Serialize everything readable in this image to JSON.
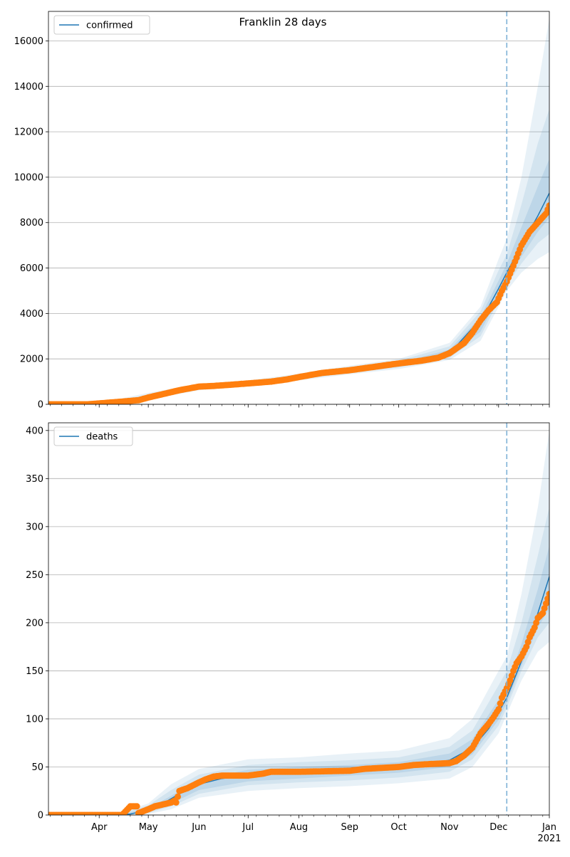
{
  "figure": {
    "title": "Franklin 28 days"
  },
  "chart_data": [
    {
      "type": "line",
      "title": "Franklin 28 days",
      "xlabel": "",
      "ylabel": "",
      "x_axis": "date",
      "xlim": [
        "2020-03-01",
        "2021-01-01"
      ],
      "ylim": [
        0,
        17300
      ],
      "yticks": [
        0,
        2000,
        4000,
        6000,
        8000,
        10000,
        12000,
        14000,
        16000
      ],
      "grid": "horizontal",
      "legend": {
        "placement": "top-left",
        "entries": [
          "confirmed"
        ]
      },
      "vline": {
        "date": "2020-12-06",
        "style": "dashed"
      },
      "colors": {
        "model": "#1f77b4",
        "observed": "#ff7f0e",
        "band": "#1f77b4",
        "vline": "#7fb1d6"
      },
      "series": [
        {
          "name": "confirmed",
          "kind": "model",
          "x": [
            "2020-03-01",
            "2020-03-20",
            "2020-04-01",
            "2020-04-15",
            "2020-04-25",
            "2020-05-05",
            "2020-05-15",
            "2020-05-25",
            "2020-06-05",
            "2020-06-20",
            "2020-07-05",
            "2020-07-20",
            "2020-08-01",
            "2020-08-15",
            "2020-09-01",
            "2020-09-15",
            "2020-10-01",
            "2020-10-15",
            "2020-10-25",
            "2020-11-05",
            "2020-11-15",
            "2020-11-25",
            "2020-12-01",
            "2020-12-06",
            "2020-12-15",
            "2020-12-25",
            "2021-01-01"
          ],
          "values": [
            0,
            0,
            30,
            90,
            200,
            400,
            600,
            750,
            800,
            850,
            920,
            1030,
            1210,
            1380,
            1520,
            1650,
            1800,
            1950,
            2100,
            2550,
            3350,
            4300,
            5100,
            5800,
            7000,
            8300,
            9300
          ]
        },
        {
          "kind": "observed",
          "x": [
            "2020-03-01",
            "2020-03-25",
            "2020-04-01",
            "2020-04-15",
            "2020-04-25",
            "2020-05-01",
            "2020-05-10",
            "2020-05-20",
            "2020-06-01",
            "2020-06-10",
            "2020-06-20",
            "2020-07-01",
            "2020-07-15",
            "2020-07-25",
            "2020-08-01",
            "2020-08-15",
            "2020-09-01",
            "2020-09-15",
            "2020-10-01",
            "2020-10-15",
            "2020-10-25",
            "2020-11-01",
            "2020-11-10",
            "2020-11-15",
            "2020-11-20",
            "2020-11-25",
            "2020-11-30",
            "2020-12-03",
            "2020-12-06",
            "2020-12-10",
            "2020-12-15",
            "2020-12-20",
            "2020-12-25",
            "2020-12-30",
            "2021-01-01"
          ],
          "values": [
            0,
            0,
            40,
            120,
            180,
            300,
            450,
            620,
            780,
            810,
            860,
            920,
            1000,
            1100,
            1200,
            1380,
            1500,
            1640,
            1800,
            1920,
            2050,
            2250,
            2700,
            3150,
            3700,
            4150,
            4500,
            5000,
            5400,
            6100,
            7000,
            7600,
            8000,
            8400,
            8750
          ]
        }
      ],
      "bands": [
        {
          "level": "outer",
          "x": [
            "2020-03-01",
            "2020-04-01",
            "2020-05-01",
            "2020-06-01",
            "2020-07-01",
            "2020-08-01",
            "2020-09-01",
            "2020-10-01",
            "2020-11-01",
            "2020-11-20",
            "2020-12-01",
            "2020-12-06",
            "2020-12-15",
            "2020-12-25",
            "2021-01-01"
          ],
          "lower": [
            0,
            10,
            200,
            620,
            800,
            1050,
            1320,
            1550,
            1950,
            2800,
            4300,
            5000,
            5800,
            6400,
            6700
          ],
          "upper": [
            10,
            60,
            500,
            900,
            1050,
            1350,
            1700,
            2000,
            2700,
            4300,
            6400,
            7300,
            10000,
            14000,
            17000
          ]
        },
        {
          "level": "middle",
          "x": [
            "2020-03-01",
            "2020-04-01",
            "2020-05-01",
            "2020-06-01",
            "2020-07-01",
            "2020-08-01",
            "2020-09-01",
            "2020-10-01",
            "2020-11-01",
            "2020-11-20",
            "2020-12-01",
            "2020-12-06",
            "2020-12-15",
            "2020-12-25",
            "2021-01-01"
          ],
          "lower": [
            0,
            15,
            240,
            680,
            830,
            1100,
            1380,
            1620,
            2050,
            3000,
            4550,
            5250,
            6200,
            7100,
            7500
          ],
          "upper": [
            5,
            45,
            420,
            840,
            1000,
            1300,
            1640,
            1920,
            2550,
            4100,
            5900,
            6600,
            8800,
            11500,
            13000
          ]
        },
        {
          "level": "inner",
          "x": [
            "2020-03-01",
            "2020-04-01",
            "2020-05-01",
            "2020-06-01",
            "2020-07-01",
            "2020-08-01",
            "2020-09-01",
            "2020-10-01",
            "2020-11-01",
            "2020-11-20",
            "2020-12-01",
            "2020-12-06",
            "2020-12-15",
            "2020-12-25",
            "2021-01-01"
          ],
          "lower": [
            0,
            20,
            280,
            730,
            870,
            1150,
            1440,
            1690,
            2150,
            3200,
            4750,
            5450,
            6500,
            7600,
            8200
          ],
          "upper": [
            2,
            35,
            370,
            790,
            960,
            1250,
            1580,
            1840,
            2400,
            3850,
            5450,
            6200,
            7800,
            9600,
            10800
          ]
        }
      ]
    },
    {
      "type": "line",
      "title": "",
      "xlabel": "",
      "ylabel": "",
      "x_axis": "date",
      "xlim": [
        "2020-03-01",
        "2021-01-01"
      ],
      "ylim": [
        0,
        408
      ],
      "yticks": [
        0,
        50,
        100,
        150,
        200,
        250,
        300,
        350,
        400
      ],
      "xticks": [
        {
          "date": "2020-04-01",
          "label": "Apr"
        },
        {
          "date": "2020-05-01",
          "label": "May"
        },
        {
          "date": "2020-06-01",
          "label": "Jun"
        },
        {
          "date": "2020-07-01",
          "label": "Jul"
        },
        {
          "date": "2020-08-01",
          "label": "Aug"
        },
        {
          "date": "2020-09-01",
          "label": "Sep"
        },
        {
          "date": "2020-10-01",
          "label": "Oct"
        },
        {
          "date": "2020-11-01",
          "label": "Nov"
        },
        {
          "date": "2020-12-01",
          "label": "Dec"
        },
        {
          "date": "2021-01-01",
          "label": "Jan",
          "sublabel": "2021"
        }
      ],
      "grid": "horizontal",
      "legend": {
        "placement": "top-left",
        "entries": [
          "deaths"
        ]
      },
      "vline": {
        "date": "2020-12-06",
        "style": "dashed"
      },
      "colors": {
        "model": "#1f77b4",
        "observed": "#ff7f0e",
        "band": "#1f77b4",
        "vline": "#7fb1d6"
      },
      "series": [
        {
          "name": "deaths",
          "kind": "model",
          "x": [
            "2020-03-01",
            "2020-04-01",
            "2020-04-20",
            "2020-05-01",
            "2020-05-10",
            "2020-05-20",
            "2020-06-01",
            "2020-06-15",
            "2020-07-01",
            "2020-07-20",
            "2020-08-01",
            "2020-08-15",
            "2020-09-01",
            "2020-09-15",
            "2020-10-01",
            "2020-10-15",
            "2020-11-01",
            "2020-11-15",
            "2020-11-25",
            "2020-12-01",
            "2020-12-06",
            "2020-12-15",
            "2020-12-25",
            "2021-01-01"
          ],
          "values": [
            0,
            0,
            1,
            5,
            12,
            22,
            32,
            38,
            41,
            43,
            44,
            45,
            46,
            47,
            49,
            52,
            57,
            70,
            90,
            107,
            122,
            160,
            210,
            248
          ]
        },
        {
          "kind": "observed",
          "x": [
            "2020-03-01",
            "2020-04-15",
            "2020-04-20",
            "2020-04-21",
            "2020-04-22",
            "2020-04-24",
            "2020-04-25",
            "2020-04-28",
            "2020-05-01",
            "2020-05-05",
            "2020-05-10",
            "2020-05-15",
            "2020-05-17",
            "2020-05-18",
            "2020-05-20",
            "2020-05-25",
            "2020-06-01",
            "2020-06-05",
            "2020-06-10",
            "2020-06-15",
            "2020-07-01",
            "2020-07-10",
            "2020-07-15",
            "2020-08-01",
            "2020-09-01",
            "2020-09-10",
            "2020-10-01",
            "2020-10-10",
            "2020-10-20",
            "2020-11-01",
            "2020-11-05",
            "2020-11-10",
            "2020-11-15",
            "2020-11-20",
            "2020-11-25",
            "2020-11-28",
            "2020-12-01",
            "2020-12-03",
            "2020-12-06",
            "2020-12-08",
            "2020-12-10",
            "2020-12-12",
            "2020-12-15",
            "2020-12-18",
            "2020-12-20",
            "2020-12-23",
            "2020-12-25",
            "2020-12-28",
            "2020-12-30",
            "2021-01-01"
          ],
          "values": [
            0,
            0,
            9,
            9,
            9,
            9,
            2,
            4,
            6,
            9,
            11,
            13,
            15,
            13,
            25,
            28,
            34,
            37,
            40,
            41,
            41,
            43,
            45,
            45,
            46,
            48,
            50,
            52,
            53,
            54,
            56,
            62,
            70,
            85,
            95,
            102,
            110,
            122,
            132,
            140,
            150,
            158,
            165,
            175,
            185,
            195,
            205,
            210,
            220,
            230
          ]
        }
      ],
      "bands": [
        {
          "level": "outer",
          "x": [
            "2020-03-01",
            "2020-04-15",
            "2020-05-01",
            "2020-05-15",
            "2020-06-01",
            "2020-07-01",
            "2020-08-01",
            "2020-09-01",
            "2020-10-01",
            "2020-11-01",
            "2020-11-15",
            "2020-12-01",
            "2020-12-06",
            "2020-12-15",
            "2020-12-25",
            "2021-01-01"
          ],
          "lower": [
            0,
            0,
            1,
            6,
            18,
            25,
            28,
            30,
            33,
            38,
            50,
            85,
            105,
            140,
            170,
            180
          ],
          "upper": [
            1,
            3,
            12,
            32,
            48,
            58,
            60,
            64,
            67,
            80,
            100,
            150,
            165,
            230,
            320,
            400
          ]
        },
        {
          "level": "middle",
          "x": [
            "2020-03-01",
            "2020-04-15",
            "2020-05-01",
            "2020-05-15",
            "2020-06-01",
            "2020-07-01",
            "2020-08-01",
            "2020-09-01",
            "2020-10-01",
            "2020-11-01",
            "2020-11-15",
            "2020-12-01",
            "2020-12-06",
            "2020-12-15",
            "2020-12-25",
            "2021-01-01"
          ],
          "lower": [
            0,
            0,
            2,
            9,
            22,
            31,
            34,
            36,
            39,
            45,
            58,
            93,
            112,
            150,
            185,
            200
          ],
          "upper": [
            1,
            2,
            10,
            26,
            42,
            52,
            55,
            57,
            60,
            71,
            88,
            135,
            150,
            200,
            270,
            320
          ]
        },
        {
          "level": "inner",
          "x": [
            "2020-03-01",
            "2020-04-15",
            "2020-05-01",
            "2020-05-15",
            "2020-06-01",
            "2020-07-01",
            "2020-08-01",
            "2020-09-01",
            "2020-10-01",
            "2020-11-01",
            "2020-11-15",
            "2020-12-01",
            "2020-12-06",
            "2020-12-15",
            "2020-12-25",
            "2021-01-01"
          ],
          "lower": [
            0,
            0,
            3,
            12,
            26,
            35,
            38,
            41,
            44,
            50,
            63,
            99,
            117,
            155,
            195,
            215
          ],
          "upper": [
            0,
            1,
            7,
            20,
            37,
            47,
            50,
            52,
            55,
            64,
            79,
            120,
            135,
            178,
            235,
            280
          ]
        }
      ]
    }
  ]
}
